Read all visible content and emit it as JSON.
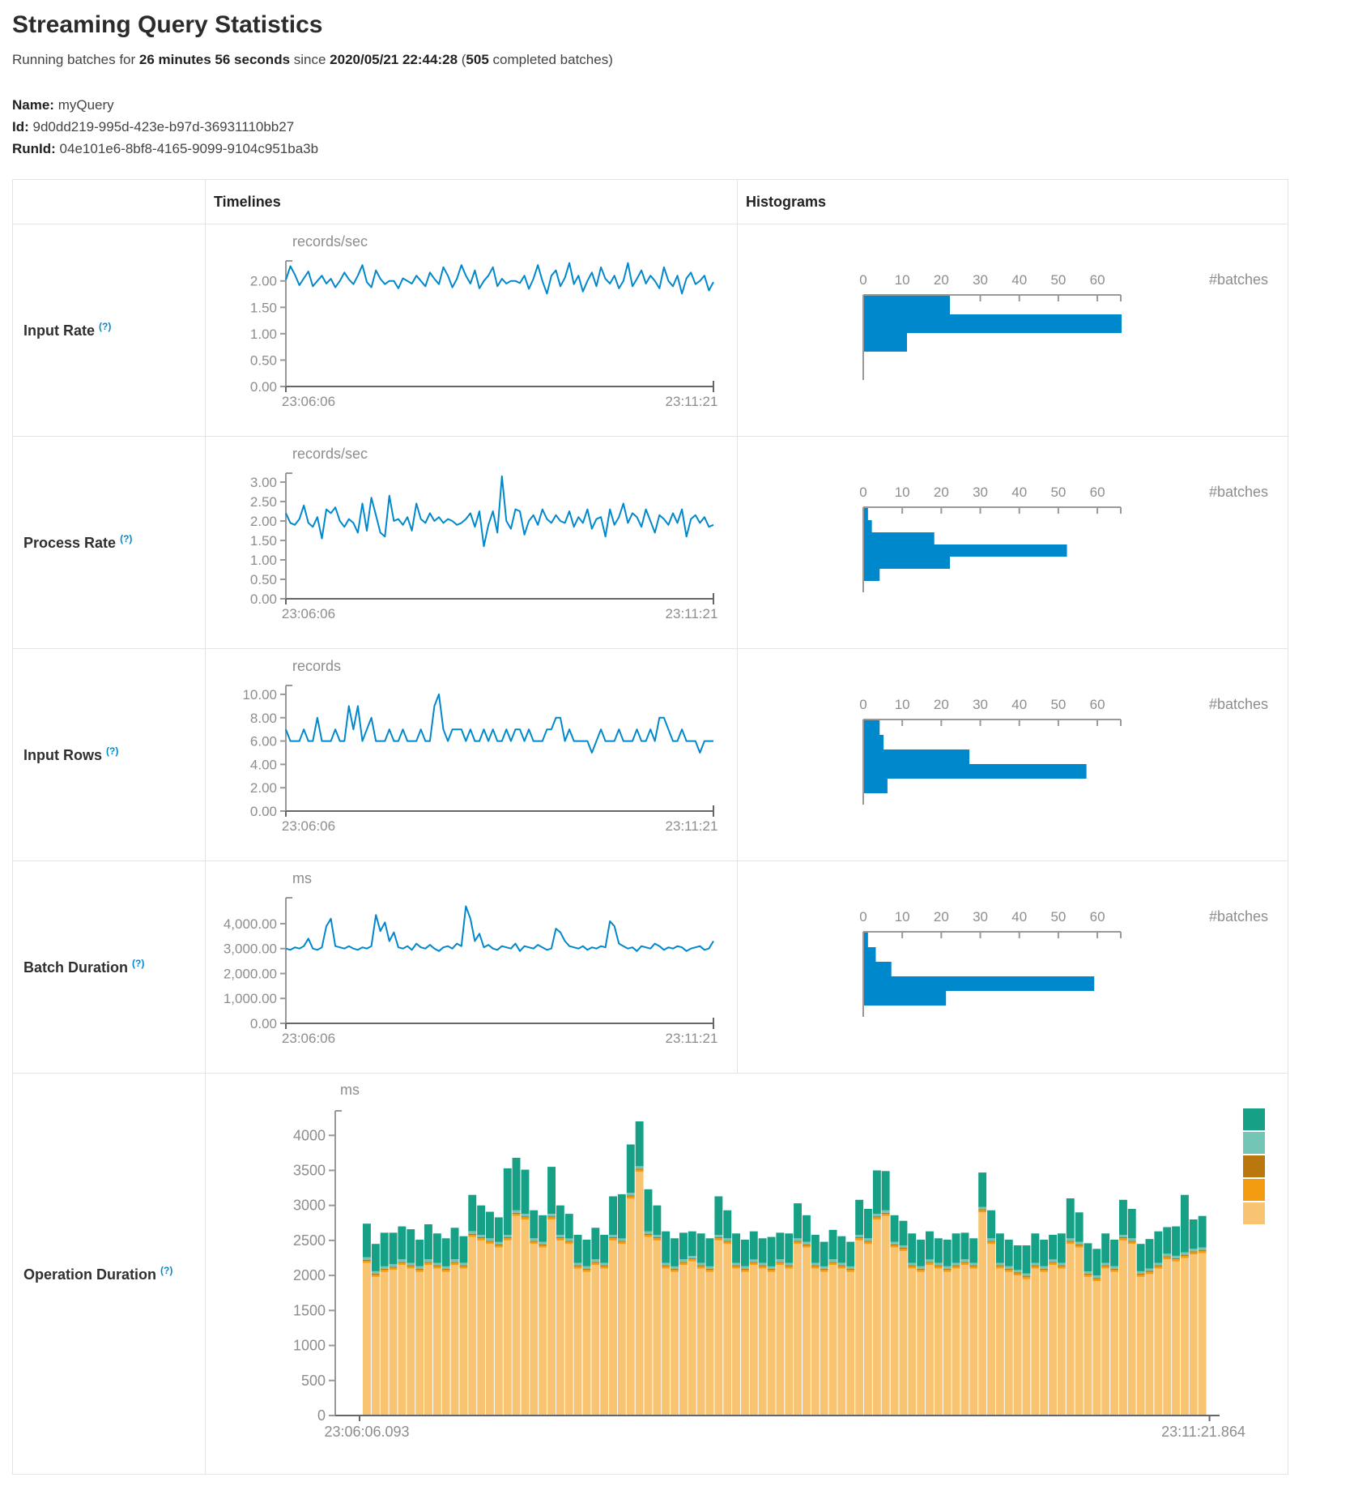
{
  "page": {
    "title": "Streaming Query Statistics"
  },
  "status": {
    "prefix": "Running batches for ",
    "duration": "26 minutes 56 seconds",
    "since_text": " since ",
    "start_time": "2020/05/21 22:44:28",
    "paren_open": " (",
    "completed_batches": "505",
    "suffix": " completed batches)"
  },
  "query_info": {
    "name_label": "Name:",
    "name": " myQuery",
    "id_label": "Id:",
    "id": " 9d0dd219-995d-423e-b97d-36931110bb27",
    "runid_label": "RunId:",
    "runid": " 04e101e6-8bf8-4165-9099-9104c951ba3b"
  },
  "table": {
    "timelines_header": "Timelines",
    "histograms_header": "Histograms",
    "rows": [
      {
        "label": "Input Rate",
        "help": "(?)"
      },
      {
        "label": "Process Rate",
        "help": "(?)"
      },
      {
        "label": "Input Rows",
        "help": "(?)"
      },
      {
        "label": "Batch Duration",
        "help": "(?)"
      },
      {
        "label": "Operation Duration",
        "help": "(?)"
      }
    ]
  },
  "chart_data": [
    {
      "id": "input_rate_timeline",
      "type": "line",
      "title": "records/sec",
      "color": "#0088cc",
      "ylim": [
        0,
        2.38
      ],
      "yticks": [
        {
          "v": 0,
          "label": "0.00"
        },
        {
          "v": 0.5,
          "label": "0.50"
        },
        {
          "v": 1,
          "label": "1.00"
        },
        {
          "v": 1.5,
          "label": "1.50"
        },
        {
          "v": 2,
          "label": "2.00"
        }
      ],
      "x_start_label": "23:06:06",
      "x_end_label": "23:11:21",
      "grid": false,
      "values": [
        2.02,
        2.28,
        2.12,
        1.92,
        2.05,
        2.18,
        1.9,
        2.0,
        2.1,
        1.95,
        2.04,
        1.88,
        2.0,
        2.16,
        2.03,
        1.94,
        2.1,
        2.3,
        1.98,
        1.88,
        2.2,
        2.04,
        1.94,
        2.0,
        2.0,
        1.86,
        2.05,
        2.0,
        1.95,
        2.1,
        2.0,
        1.9,
        2.16,
        2.04,
        1.94,
        2.26,
        2.1,
        1.88,
        2.04,
        2.3,
        2.1,
        1.95,
        2.2,
        1.86,
        2.0,
        2.1,
        2.26,
        1.9,
        2.04,
        1.95,
        2.0,
        2.0,
        1.96,
        2.1,
        1.85,
        2.04,
        2.3,
        2.0,
        1.76,
        2.1,
        2.2,
        1.9,
        2.06,
        2.34,
        1.94,
        2.1,
        1.8,
        2.0,
        2.16,
        1.9,
        2.26,
        2.04,
        1.95,
        2.1,
        1.86,
        2.0,
        2.34,
        1.9,
        2.04,
        2.2,
        1.95,
        2.1,
        2.0,
        1.86,
        2.26,
        2.0,
        1.9,
        2.1,
        1.76,
        2.05,
        2.16,
        1.94,
        2.0,
        2.1,
        1.82,
        1.98
      ]
    },
    {
      "id": "input_rate_histogram",
      "type": "hbar",
      "xlabel": "#batches",
      "color": "#0088cc",
      "xticks": [
        0,
        10,
        20,
        30,
        40,
        50,
        60
      ],
      "xmax": 66,
      "values": [
        22,
        66,
        11
      ]
    },
    {
      "id": "process_rate_timeline",
      "type": "line",
      "title": "records/sec",
      "color": "#0088cc",
      "ylim": [
        0,
        3.23
      ],
      "yticks": [
        {
          "v": 0,
          "label": "0.00"
        },
        {
          "v": 0.5,
          "label": "0.50"
        },
        {
          "v": 1,
          "label": "1.00"
        },
        {
          "v": 1.5,
          "label": "1.50"
        },
        {
          "v": 2,
          "label": "2.00"
        },
        {
          "v": 2.5,
          "label": "2.50"
        },
        {
          "v": 3,
          "label": "3.00"
        }
      ],
      "x_start_label": "23:06:06",
      "x_end_label": "23:11:21",
      "grid": false,
      "values": [
        2.2,
        1.95,
        1.9,
        2.05,
        2.4,
        1.95,
        1.85,
        2.1,
        1.55,
        2.3,
        2.2,
        2.35,
        2.0,
        1.85,
        2.05,
        1.95,
        1.7,
        2.45,
        1.75,
        2.6,
        2.15,
        1.7,
        1.6,
        2.65,
        2.0,
        2.05,
        1.9,
        2.1,
        1.75,
        2.45,
        2.05,
        1.95,
        2.2,
        2.0,
        2.1,
        1.95,
        2.05,
        2.0,
        1.9,
        1.95,
        2.05,
        2.2,
        1.85,
        2.25,
        1.35,
        1.9,
        2.25,
        1.7,
        3.15,
        2.0,
        1.8,
        2.3,
        2.25,
        1.65,
        2.0,
        2.15,
        1.9,
        2.3,
        2.05,
        1.95,
        2.15,
        2.0,
        1.95,
        2.25,
        1.85,
        2.1,
        1.95,
        2.3,
        1.8,
        2.05,
        2.1,
        1.6,
        2.3,
        1.9,
        2.1,
        2.45,
        1.95,
        2.2,
        2.1,
        1.85,
        2.3,
        2.0,
        1.7,
        2.15,
        2.05,
        1.9,
        2.2,
        1.95,
        2.3,
        1.6,
        2.05,
        2.15,
        1.95,
        2.1,
        1.85,
        1.9
      ]
    },
    {
      "id": "process_rate_histogram",
      "type": "hbar",
      "xlabel": "#batches",
      "color": "#0088cc",
      "xticks": [
        0,
        10,
        20,
        30,
        40,
        50,
        60
      ],
      "xmax": 66,
      "values": [
        1,
        2,
        18,
        52,
        22,
        4
      ]
    },
    {
      "id": "input_rows_timeline",
      "type": "line",
      "title": "records",
      "color": "#0088cc",
      "ylim": [
        0,
        10.76
      ],
      "yticks": [
        {
          "v": 0,
          "label": "0.00"
        },
        {
          "v": 2,
          "label": "2.00"
        },
        {
          "v": 4,
          "label": "4.00"
        },
        {
          "v": 6,
          "label": "6.00"
        },
        {
          "v": 8,
          "label": "8.00"
        },
        {
          "v": 10,
          "label": "10.00"
        }
      ],
      "x_start_label": "23:06:06",
      "x_end_label": "23:11:21",
      "grid": false,
      "values": [
        7,
        6,
        6,
        6,
        7,
        6,
        6,
        8,
        6,
        6,
        6,
        7,
        6,
        6,
        9,
        7,
        9,
        6,
        7,
        8,
        6,
        6,
        6,
        7,
        6,
        6,
        7,
        6,
        6,
        6,
        7,
        6,
        6,
        9,
        10,
        7,
        6,
        7,
        7,
        7,
        6,
        7,
        6,
        6,
        7,
        6,
        7,
        6,
        6,
        7,
        6,
        7,
        7,
        6,
        7,
        6,
        6,
        6,
        7,
        7,
        8,
        8,
        6,
        7,
        6,
        6,
        6,
        6,
        5,
        6,
        7,
        6,
        6,
        6,
        7,
        6,
        6,
        6,
        7,
        6,
        6,
        7,
        6,
        8,
        8,
        7,
        6,
        6,
        7,
        6,
        6,
        6,
        5,
        6,
        6,
        6
      ]
    },
    {
      "id": "input_rows_histogram",
      "type": "hbar",
      "xlabel": "#batches",
      "color": "#0088cc",
      "xticks": [
        0,
        10,
        20,
        30,
        40,
        50,
        60
      ],
      "xmax": 66,
      "values": [
        4,
        5,
        27,
        57,
        6
      ]
    },
    {
      "id": "batch_duration_timeline",
      "type": "line",
      "title": "ms",
      "color": "#0088cc",
      "ylim": [
        0,
        5040
      ],
      "yticks": [
        {
          "v": 0,
          "label": "0.00"
        },
        {
          "v": 1000,
          "label": "1,000.00"
        },
        {
          "v": 2000,
          "label": "2,000.00"
        },
        {
          "v": 3000,
          "label": "3,000.00"
        },
        {
          "v": 4000,
          "label": "4,000.00"
        }
      ],
      "x_start_label": "23:06:06",
      "x_end_label": "23:11:21",
      "grid": false,
      "values": [
        3000,
        2950,
        3050,
        3000,
        3100,
        3400,
        3000,
        2950,
        3050,
        3900,
        4200,
        3100,
        3050,
        3000,
        3100,
        3000,
        2950,
        3050,
        3000,
        3100,
        4350,
        3700,
        4050,
        3300,
        3650,
        3050,
        3000,
        3100,
        2950,
        3200,
        3050,
        3000,
        3150,
        3000,
        2900,
        3050,
        3100,
        3000,
        3200,
        3100,
        4700,
        4200,
        3300,
        3600,
        3050,
        3150,
        3000,
        2950,
        3100,
        3050,
        3000,
        3200,
        2900,
        3100,
        3050,
        3000,
        3150,
        3050,
        2950,
        3000,
        3800,
        3650,
        3300,
        3100,
        3050,
        3000,
        3100,
        2950,
        3050,
        3000,
        3100,
        3050,
        4100,
        3900,
        3200,
        3100,
        3000,
        3050,
        2900,
        3100,
        3050,
        3000,
        3200,
        3100,
        2950,
        3050,
        3000,
        3100,
        3050,
        2900,
        3000,
        3050,
        3100,
        2950,
        3000,
        3300
      ]
    },
    {
      "id": "batch_duration_histogram",
      "type": "hbar",
      "xlabel": "#batches",
      "color": "#0088cc",
      "xticks": [
        0,
        10,
        20,
        30,
        40,
        50,
        60
      ],
      "xmax": 66,
      "values": [
        1,
        3,
        7,
        59,
        21
      ]
    },
    {
      "id": "operation_duration",
      "type": "stacked-bar",
      "title": "ms",
      "ylim": [
        0,
        4350
      ],
      "yticks": [
        {
          "v": 0,
          "label": "0"
        },
        {
          "v": 500,
          "label": "500"
        },
        {
          "v": 1000,
          "label": "1000"
        },
        {
          "v": 1500,
          "label": "1500"
        },
        {
          "v": 2000,
          "label": "2000"
        },
        {
          "v": 2500,
          "label": "2500"
        },
        {
          "v": 3000,
          "label": "3000"
        },
        {
          "v": 3500,
          "label": "3500"
        },
        {
          "v": 4000,
          "label": "4000"
        }
      ],
      "x_start_label": "23:06:06.093",
      "x_end_label": "23:11:21.864",
      "grid": false,
      "legend_position": "right",
      "legend_colors": [
        "#16A085",
        "#73C6B6",
        "#B9770E",
        "#F39C12",
        "#F8C471"
      ],
      "series": [
        {
          "color": "#F8C471",
          "values": [
            2180,
            1980,
            2050,
            2080,
            2150,
            2100,
            2050,
            2150,
            2100,
            2050,
            2150,
            2100,
            2550,
            2500,
            2450,
            2400,
            2500,
            2850,
            2800,
            2450,
            2400,
            2800,
            2500,
            2450,
            2100,
            2050,
            2150,
            2100,
            2500,
            2450,
            3100,
            3480,
            2550,
            2500,
            2100,
            2050,
            2150,
            2200,
            2100,
            2050,
            2500,
            2450,
            2100,
            2050,
            2150,
            2100,
            2050,
            2150,
            2100,
            2450,
            2400,
            2100,
            2050,
            2150,
            2100,
            2050,
            2500,
            2450,
            2800,
            2850,
            2400,
            2350,
            2100,
            2050,
            2150,
            2100,
            2050,
            2100,
            2150,
            2100,
            2900,
            2450,
            2100,
            2050,
            2000,
            1950,
            2100,
            2050,
            2150,
            2100,
            2450,
            2400,
            1980,
            1920,
            2100,
            2050,
            2500,
            2450,
            1980,
            2020,
            2100,
            2230,
            2200,
            2250,
            2300,
            2320
          ]
        },
        {
          "color": "#F39C12",
          "value": 30
        },
        {
          "color": "#B9770E",
          "value": 15
        },
        {
          "color": "#73C6B6",
          "value": 35
        },
        {
          "color": "#16A085",
          "values": [
            480,
            390,
            480,
            450,
            470,
            480,
            380,
            500,
            420,
            400,
            450,
            380,
            520,
            420,
            380,
            350,
            950,
            750,
            630,
            400,
            380,
            670,
            420,
            350,
            400,
            380,
            450,
            400,
            550,
            630,
            690,
            640,
            600,
            420,
            450,
            400,
            380,
            350,
            420,
            400,
            550,
            400,
            420,
            380,
            400,
            350,
            420,
            380,
            420,
            500,
            380,
            400,
            350,
            420,
            380,
            350,
            500,
            420,
            620,
            560,
            380,
            350,
            420,
            380,
            400,
            350,
            380,
            420,
            380,
            350,
            490,
            400,
            420,
            380,
            350,
            400,
            420,
            380,
            350,
            420,
            570,
            420,
            400,
            380,
            420,
            380,
            500,
            420,
            390,
            420,
            450,
            380,
            420,
            820,
            420,
            450
          ]
        }
      ]
    }
  ]
}
